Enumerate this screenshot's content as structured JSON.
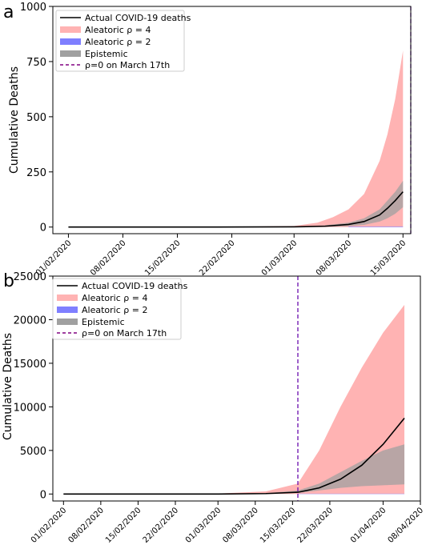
{
  "chart_data": [
    {
      "panel_label": "a",
      "type": "area",
      "ylabel": "Cumulative Deaths",
      "ylim": [
        -30,
        1000
      ],
      "yticks": [
        0,
        250,
        500,
        750,
        1000
      ],
      "xlim": [
        "2020-01-30",
        "2020-03-16"
      ],
      "xticks": [
        "01/02/2020",
        "08/02/2020",
        "15/02/2020",
        "22/02/2020",
        "01/03/2020",
        "08/03/2020",
        "15/03/2020"
      ],
      "x_start": "2020-02-01",
      "x_end": "2020-03-15",
      "vline": "2020-03-16",
      "legend": {
        "placement": "top-left",
        "entries": [
          "Actual COVID-19  deaths",
          "Aleatoric ρ = 4",
          "Aleatoric ρ = 2",
          "Epistemic",
          "ρ=0 on March 17th"
        ]
      },
      "series": [
        {
          "name": "Actual COVID-19  deaths",
          "kind": "line",
          "color": "#000000",
          "x": [
            "2020-02-01",
            "2020-02-20",
            "2020-03-01",
            "2020-03-05",
            "2020-03-08",
            "2020-03-10",
            "2020-03-12",
            "2020-03-13",
            "2020-03-14",
            "2020-03-15"
          ],
          "y": [
            0,
            0,
            1,
            4,
            12,
            25,
            55,
            85,
            120,
            160
          ]
        },
        {
          "name": "Aleatoric ρ = 4",
          "kind": "band",
          "color": "#ffb3b3",
          "x": [
            "2020-02-01",
            "2020-02-20",
            "2020-03-01",
            "2020-03-04",
            "2020-03-06",
            "2020-03-08",
            "2020-03-10",
            "2020-03-12",
            "2020-03-13",
            "2020-03-14",
            "2020-03-15"
          ],
          "lower": [
            0,
            0,
            0,
            0,
            0,
            0,
            0,
            0,
            0,
            0,
            0
          ],
          "upper": [
            0,
            0,
            5,
            20,
            45,
            80,
            150,
            300,
            420,
            580,
            800
          ]
        },
        {
          "name": "Aleatoric ρ = 2",
          "kind": "band",
          "color": "#7f7fff",
          "x": [
            "2020-03-08",
            "2020-03-15"
          ],
          "lower": [
            0,
            0
          ],
          "upper": [
            2,
            2
          ]
        },
        {
          "name": "Epistemic",
          "kind": "band",
          "color": "#a0a0a0",
          "x": [
            "2020-02-01",
            "2020-03-01",
            "2020-03-05",
            "2020-03-08",
            "2020-03-10",
            "2020-03-12",
            "2020-03-13",
            "2020-03-14",
            "2020-03-15"
          ],
          "lower": [
            0,
            0,
            1,
            4,
            10,
            25,
            40,
            60,
            90
          ],
          "upper": [
            0,
            2,
            8,
            20,
            40,
            80,
            120,
            160,
            210
          ]
        }
      ]
    },
    {
      "panel_label": "b",
      "type": "area",
      "ylabel": "Cumulative Deaths",
      "ylim": [
        -800,
        25000
      ],
      "yticks": [
        0,
        5000,
        10000,
        15000,
        20000,
        25000
      ],
      "xlim": [
        "2020-01-30",
        "2020-04-08"
      ],
      "xticks": [
        "01/02/2020",
        "08/02/2020",
        "15/02/2020",
        "22/02/2020",
        "01/03/2020",
        "08/03/2020",
        "15/03/2020",
        "22/03/2020",
        "01/04/2020",
        "08/04/2020"
      ],
      "x_start": "2020-02-01",
      "x_end": "2020-04-05",
      "vline": "2020-03-16",
      "legend": {
        "placement": "top-left",
        "entries": [
          "Actual COVID-19 deaths",
          "Aleatoric ρ = 4",
          "Aleatoric ρ = 2",
          "Epistemic",
          "ρ=0 on March 17th"
        ]
      },
      "series": [
        {
          "name": "Actual COVID-19 deaths",
          "kind": "line",
          "color": "#000000",
          "x": [
            "2020-02-01",
            "2020-03-01",
            "2020-03-10",
            "2020-03-16",
            "2020-03-20",
            "2020-03-24",
            "2020-03-28",
            "2020-04-01",
            "2020-04-05"
          ],
          "y": [
            0,
            0,
            50,
            200,
            700,
            1700,
            3300,
            5700,
            8700
          ]
        },
        {
          "name": "Aleatoric ρ = 4",
          "kind": "band",
          "color": "#ffb3b3",
          "x": [
            "2020-02-01",
            "2020-03-01",
            "2020-03-10",
            "2020-03-16",
            "2020-03-20",
            "2020-03-24",
            "2020-03-28",
            "2020-04-01",
            "2020-04-05"
          ],
          "lower": [
            0,
            0,
            0,
            0,
            0,
            0,
            0,
            0,
            0
          ],
          "upper": [
            0,
            50,
            300,
            1200,
            5000,
            10000,
            14500,
            18500,
            21700
          ]
        },
        {
          "name": "Aleatoric ρ = 2",
          "kind": "band",
          "color": "#7f7fff",
          "x": [
            "2020-03-16",
            "2020-04-05"
          ],
          "lower": [
            0,
            0
          ],
          "upper": [
            40,
            40
          ]
        },
        {
          "name": "Epistemic",
          "kind": "band",
          "color": "#a0a0a0",
          "x": [
            "2020-02-01",
            "2020-03-01",
            "2020-03-10",
            "2020-03-16",
            "2020-03-20",
            "2020-03-24",
            "2020-03-28",
            "2020-04-01",
            "2020-04-05"
          ],
          "lower": [
            0,
            0,
            30,
            120,
            400,
            700,
            900,
            1000,
            1100
          ],
          "upper": [
            0,
            20,
            100,
            400,
            1200,
            2500,
            3800,
            5000,
            5700
          ]
        }
      ]
    }
  ]
}
